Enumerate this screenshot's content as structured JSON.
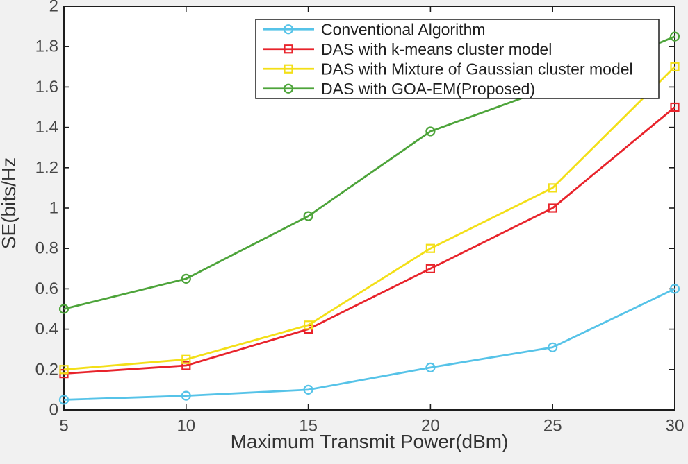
{
  "figure": {
    "background": "#f1f1f1",
    "plot_background": "#ffffff",
    "frame_color": "#1d1d1d",
    "tick_label_color": "#454545",
    "axis_label_color": "#333333",
    "legend_text_color": "#1f1f1f",
    "legend_border_color": "#2b2b2b"
  },
  "chart_data": {
    "type": "line",
    "title": "",
    "xlabel": "Maximum Transmit Power(dBm)",
    "ylabel": "SE(bits/Hz",
    "x": [
      5,
      10,
      15,
      20,
      25,
      30
    ],
    "xlim": [
      5,
      30
    ],
    "ylim": [
      0,
      2
    ],
    "x_ticks": [
      "5",
      "10",
      "15",
      "20",
      "25",
      "30"
    ],
    "y_tick_values": [
      0,
      0.2,
      0.4,
      0.6,
      0.8,
      1,
      1.2,
      1.4,
      1.6,
      1.8,
      2
    ],
    "y_ticks": [
      "0",
      "0.2",
      "0.4",
      "0.6",
      "0.8",
      "1",
      "1.2",
      "1.4",
      "1.6",
      "1.8",
      "2"
    ],
    "grid": false,
    "legend_position": "inside-top-center",
    "series": [
      {
        "name": "Conventional Algorithm",
        "color": "#56c3e8",
        "marker": "circle",
        "values": [
          0.05,
          0.07,
          0.1,
          0.21,
          0.31,
          0.6
        ]
      },
      {
        "name": "DAS with k-means cluster model",
        "color": "#e8232b",
        "marker": "square",
        "values": [
          0.18,
          0.22,
          0.4,
          0.7,
          1.0,
          1.5
        ]
      },
      {
        "name": "DAS with Mixture of Gaussian cluster model",
        "color": "#f3df17",
        "marker": "square",
        "values": [
          0.2,
          0.25,
          0.42,
          0.8,
          1.1,
          1.7
        ]
      },
      {
        "name": "DAS with GOA-EM(Proposed)",
        "color": "#4da43a",
        "marker": "circle",
        "values": [
          0.5,
          0.65,
          0.96,
          1.38,
          1.6,
          1.85
        ]
      }
    ]
  }
}
